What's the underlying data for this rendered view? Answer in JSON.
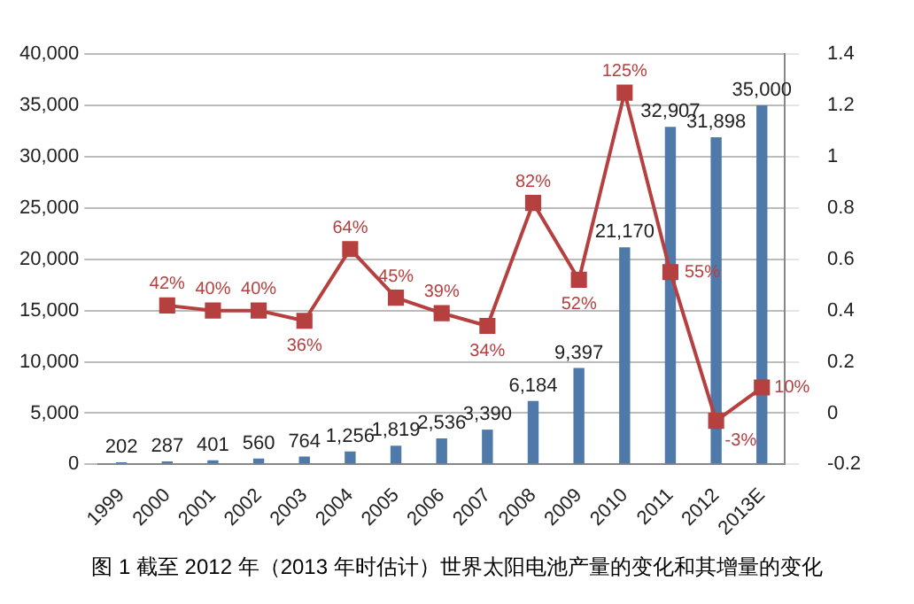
{
  "chart_data": {
    "type": "bar",
    "categories": [
      "1999",
      "2000",
      "2001",
      "2002",
      "2003",
      "2004",
      "2005",
      "2006",
      "2007",
      "2008",
      "2009",
      "2010",
      "2011",
      "2012",
      "2013E"
    ],
    "series": [
      {
        "color": "#4f79a8",
        "values": [
          202,
          287,
          401,
          560,
          764,
          1256,
          1819,
          2536,
          3390,
          6184,
          9397,
          21170,
          32907,
          31898,
          35000
        ],
        "value_labels": [
          "202",
          "287",
          "401",
          "560",
          "764",
          "1,256",
          "1,819",
          "2,536",
          "3,390",
          "6,184",
          "9,397",
          "21,170",
          "32,907",
          "31,898",
          "35,000"
        ]
      },
      {
        "type": "line",
        "axis": "y2",
        "color": "#b5403f",
        "marker": "square",
        "values": [
          null,
          0.42,
          0.4,
          0.4,
          0.36,
          0.64,
          0.45,
          0.39,
          0.34,
          0.82,
          0.52,
          1.25,
          0.55,
          -0.03,
          0.1
        ],
        "value_labels": [
          null,
          "42%",
          "40%",
          "40%",
          "36%",
          "64%",
          "45%",
          "39%",
          "34%",
          "82%",
          "52%",
          "125%",
          "55%",
          "-3%",
          "10%"
        ]
      }
    ],
    "ylim": [
      0,
      40000
    ],
    "yticks": [
      0,
      {
        "value": 5000,
        "label": "5,000"
      },
      {
        "value": 10000,
        "label": "10,000"
      },
      {
        "value": 15000,
        "label": "15,000"
      },
      {
        "value": 20000,
        "label": "20,000"
      },
      {
        "value": 25000,
        "label": "25,000"
      },
      {
        "value": 30000,
        "label": "30,000"
      },
      {
        "value": 35000,
        "label": "35,000"
      },
      {
        "value": 40000,
        "label": "40,000"
      }
    ],
    "y2lim": [
      -0.2,
      1.4
    ],
    "y2ticks": [
      -0.2,
      0,
      0.2,
      0.4,
      0.6,
      0.8,
      1,
      1.2,
      1.4
    ],
    "grid": "y",
    "annotations": [
      "图 1 截至 2012 年（2013 年时估计）世界太阳电池产量的变化和其增量的变化"
    ]
  }
}
